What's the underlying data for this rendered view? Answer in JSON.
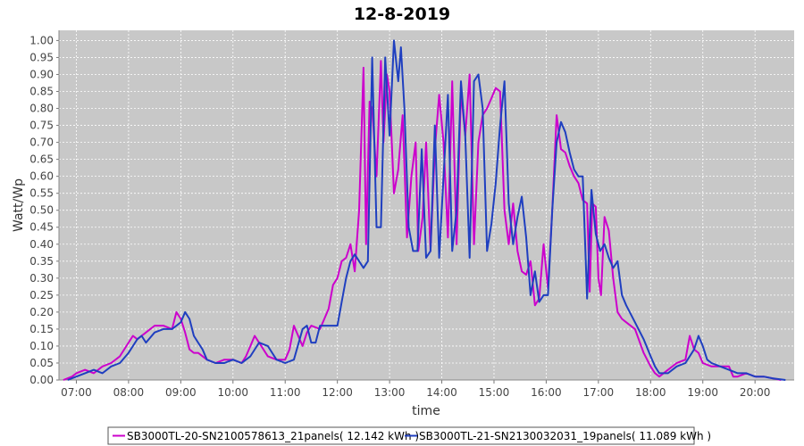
{
  "chart_data": {
    "type": "line",
    "title": "12-8-2019",
    "xlabel": "time",
    "ylabel": "Watt/Wp",
    "xlim": [
      "06:40",
      "20:45"
    ],
    "ylim": [
      0,
      1.03
    ],
    "grid": true,
    "legend_position": "bottom",
    "x_ticks": [
      "07:00",
      "08:00",
      "09:00",
      "10:00",
      "11:00",
      "12:00",
      "13:00",
      "14:00",
      "15:00",
      "16:00",
      "17:00",
      "18:00",
      "19:00",
      "20:00"
    ],
    "y_ticks": [
      "0.00",
      "0.05",
      "0.10",
      "0.15",
      "0.20",
      "0.25",
      "0.30",
      "0.35",
      "0.40",
      "0.45",
      "0.50",
      "0.55",
      "0.60",
      "0.65",
      "0.70",
      "0.75",
      "0.80",
      "0.85",
      "0.90",
      "0.95",
      "1.00"
    ],
    "colors": {
      "plot_background": "#c8c8c8",
      "gridline": "#ffffff",
      "series1": "#cc00cc",
      "series2": "#1f3fc0"
    },
    "series": [
      {
        "name": "SB3000TL-20-SN2100578613_21panels( 12.142 kWh )",
        "color": "#cc00cc",
        "points": [
          [
            "06:45",
            0.0
          ],
          [
            "06:55",
            0.01
          ],
          [
            "07:00",
            0.02
          ],
          [
            "07:10",
            0.03
          ],
          [
            "07:20",
            0.02
          ],
          [
            "07:30",
            0.04
          ],
          [
            "07:40",
            0.05
          ],
          [
            "07:50",
            0.07
          ],
          [
            "08:00",
            0.11
          ],
          [
            "08:05",
            0.13
          ],
          [
            "08:10",
            0.12
          ],
          [
            "08:20",
            0.14
          ],
          [
            "08:30",
            0.16
          ],
          [
            "08:40",
            0.16
          ],
          [
            "08:50",
            0.15
          ],
          [
            "08:55",
            0.2
          ],
          [
            "09:00",
            0.18
          ],
          [
            "09:05",
            0.14
          ],
          [
            "09:10",
            0.09
          ],
          [
            "09:15",
            0.08
          ],
          [
            "09:20",
            0.08
          ],
          [
            "09:30",
            0.06
          ],
          [
            "09:40",
            0.05
          ],
          [
            "09:50",
            0.06
          ],
          [
            "10:00",
            0.06
          ],
          [
            "10:10",
            0.05
          ],
          [
            "10:15",
            0.07
          ],
          [
            "10:20",
            0.1
          ],
          [
            "10:25",
            0.13
          ],
          [
            "10:30",
            0.11
          ],
          [
            "10:40",
            0.07
          ],
          [
            "10:50",
            0.06
          ],
          [
            "11:00",
            0.06
          ],
          [
            "11:05",
            0.09
          ],
          [
            "11:10",
            0.16
          ],
          [
            "11:15",
            0.13
          ],
          [
            "11:20",
            0.1
          ],
          [
            "11:25",
            0.14
          ],
          [
            "11:30",
            0.16
          ],
          [
            "11:40",
            0.15
          ],
          [
            "11:50",
            0.21
          ],
          [
            "11:55",
            0.28
          ],
          [
            "12:00",
            0.3
          ],
          [
            "12:05",
            0.35
          ],
          [
            "12:10",
            0.36
          ],
          [
            "12:15",
            0.4
          ],
          [
            "12:20",
            0.32
          ],
          [
            "12:25",
            0.5
          ],
          [
            "12:30",
            0.92
          ],
          [
            "12:33",
            0.4
          ],
          [
            "12:37",
            0.82
          ],
          [
            "12:40",
            0.8
          ],
          [
            "12:45",
            0.6
          ],
          [
            "12:50",
            0.94
          ],
          [
            "12:53",
            0.7
          ],
          [
            "12:57",
            0.9
          ],
          [
            "13:00",
            0.85
          ],
          [
            "13:05",
            0.55
          ],
          [
            "13:10",
            0.62
          ],
          [
            "13:15",
            0.78
          ],
          [
            "13:20",
            0.42
          ],
          [
            "13:25",
            0.6
          ],
          [
            "13:30",
            0.7
          ],
          [
            "13:33",
            0.38
          ],
          [
            "13:38",
            0.48
          ],
          [
            "13:42",
            0.7
          ],
          [
            "13:47",
            0.38
          ],
          [
            "13:52",
            0.68
          ],
          [
            "13:57",
            0.84
          ],
          [
            "14:02",
            0.7
          ],
          [
            "14:07",
            0.42
          ],
          [
            "14:12",
            0.88
          ],
          [
            "14:17",
            0.4
          ],
          [
            "14:22",
            0.85
          ],
          [
            "14:27",
            0.72
          ],
          [
            "14:32",
            0.9
          ],
          [
            "14:37",
            0.4
          ],
          [
            "14:42",
            0.7
          ],
          [
            "14:47",
            0.78
          ],
          [
            "14:52",
            0.8
          ],
          [
            "14:57",
            0.83
          ],
          [
            "15:02",
            0.86
          ],
          [
            "15:07",
            0.85
          ],
          [
            "15:12",
            0.5
          ],
          [
            "15:17",
            0.4
          ],
          [
            "15:22",
            0.52
          ],
          [
            "15:27",
            0.38
          ],
          [
            "15:32",
            0.32
          ],
          [
            "15:37",
            0.31
          ],
          [
            "15:42",
            0.35
          ],
          [
            "15:47",
            0.22
          ],
          [
            "15:52",
            0.24
          ],
          [
            "15:57",
            0.4
          ],
          [
            "16:02",
            0.27
          ],
          [
            "16:07",
            0.5
          ],
          [
            "16:12",
            0.78
          ],
          [
            "16:17",
            0.68
          ],
          [
            "16:22",
            0.67
          ],
          [
            "16:27",
            0.63
          ],
          [
            "16:32",
            0.6
          ],
          [
            "16:37",
            0.58
          ],
          [
            "16:42",
            0.53
          ],
          [
            "16:47",
            0.52
          ],
          [
            "16:50",
            0.26
          ],
          [
            "16:53",
            0.52
          ],
          [
            "16:57",
            0.51
          ],
          [
            "17:00",
            0.3
          ],
          [
            "17:03",
            0.25
          ],
          [
            "17:07",
            0.48
          ],
          [
            "17:12",
            0.44
          ],
          [
            "17:17",
            0.3
          ],
          [
            "17:22",
            0.2
          ],
          [
            "17:27",
            0.18
          ],
          [
            "17:32",
            0.17
          ],
          [
            "17:42",
            0.15
          ],
          [
            "17:52",
            0.08
          ],
          [
            "18:00",
            0.04
          ],
          [
            "18:05",
            0.02
          ],
          [
            "18:10",
            0.01
          ],
          [
            "18:20",
            0.03
          ],
          [
            "18:30",
            0.05
          ],
          [
            "18:40",
            0.06
          ],
          [
            "18:45",
            0.13
          ],
          [
            "18:50",
            0.09
          ],
          [
            "18:55",
            0.08
          ],
          [
            "19:00",
            0.05
          ],
          [
            "19:10",
            0.04
          ],
          [
            "19:20",
            0.04
          ],
          [
            "19:30",
            0.04
          ],
          [
            "19:35",
            0.01
          ],
          [
            "19:40",
            0.01
          ],
          [
            "19:50",
            0.02
          ],
          [
            "20:00",
            0.01
          ],
          [
            "20:10",
            0.01
          ],
          [
            "20:20",
            0.005
          ],
          [
            "20:30",
            0.0
          ]
        ]
      },
      {
        "name": "SB3000TL-21-SN2130032031_19panels( 11.089 kWh )",
        "color": "#1f3fc0",
        "points": [
          [
            "06:50",
            0.0
          ],
          [
            "07:00",
            0.01
          ],
          [
            "07:10",
            0.02
          ],
          [
            "07:20",
            0.03
          ],
          [
            "07:30",
            0.02
          ],
          [
            "07:40",
            0.04
          ],
          [
            "07:50",
            0.05
          ],
          [
            "08:00",
            0.08
          ],
          [
            "08:10",
            0.12
          ],
          [
            "08:15",
            0.13
          ],
          [
            "08:20",
            0.11
          ],
          [
            "08:30",
            0.14
          ],
          [
            "08:40",
            0.15
          ],
          [
            "08:50",
            0.15
          ],
          [
            "09:00",
            0.17
          ],
          [
            "09:05",
            0.2
          ],
          [
            "09:10",
            0.18
          ],
          [
            "09:15",
            0.13
          ],
          [
            "09:20",
            0.11
          ],
          [
            "09:25",
            0.09
          ],
          [
            "09:30",
            0.06
          ],
          [
            "09:40",
            0.05
          ],
          [
            "09:50",
            0.05
          ],
          [
            "10:00",
            0.06
          ],
          [
            "10:10",
            0.05
          ],
          [
            "10:20",
            0.07
          ],
          [
            "10:30",
            0.11
          ],
          [
            "10:40",
            0.1
          ],
          [
            "10:50",
            0.06
          ],
          [
            "11:00",
            0.05
          ],
          [
            "11:10",
            0.06
          ],
          [
            "11:20",
            0.15
          ],
          [
            "11:25",
            0.16
          ],
          [
            "11:30",
            0.11
          ],
          [
            "11:35",
            0.11
          ],
          [
            "11:40",
            0.16
          ],
          [
            "11:50",
            0.16
          ],
          [
            "12:00",
            0.16
          ],
          [
            "12:05",
            0.23
          ],
          [
            "12:10",
            0.3
          ],
          [
            "12:15",
            0.35
          ],
          [
            "12:20",
            0.37
          ],
          [
            "12:25",
            0.35
          ],
          [
            "12:30",
            0.33
          ],
          [
            "12:35",
            0.35
          ],
          [
            "12:40",
            0.95
          ],
          [
            "12:45",
            0.45
          ],
          [
            "12:50",
            0.45
          ],
          [
            "12:55",
            0.95
          ],
          [
            "13:00",
            0.72
          ],
          [
            "13:05",
            1.0
          ],
          [
            "13:10",
            0.88
          ],
          [
            "13:13",
            0.98
          ],
          [
            "13:17",
            0.8
          ],
          [
            "13:22",
            0.45
          ],
          [
            "13:27",
            0.38
          ],
          [
            "13:32",
            0.38
          ],
          [
            "13:37",
            0.68
          ],
          [
            "13:42",
            0.36
          ],
          [
            "13:47",
            0.38
          ],
          [
            "13:52",
            0.75
          ],
          [
            "13:57",
            0.36
          ],
          [
            "14:02",
            0.6
          ],
          [
            "14:07",
            0.84
          ],
          [
            "14:12",
            0.38
          ],
          [
            "14:17",
            0.5
          ],
          [
            "14:22",
            0.88
          ],
          [
            "14:27",
            0.72
          ],
          [
            "14:32",
            0.36
          ],
          [
            "14:37",
            0.88
          ],
          [
            "14:42",
            0.9
          ],
          [
            "14:47",
            0.8
          ],
          [
            "14:52",
            0.38
          ],
          [
            "14:57",
            0.46
          ],
          [
            "15:02",
            0.58
          ],
          [
            "15:07",
            0.75
          ],
          [
            "15:12",
            0.88
          ],
          [
            "15:17",
            0.52
          ],
          [
            "15:22",
            0.4
          ],
          [
            "15:27",
            0.48
          ],
          [
            "15:32",
            0.54
          ],
          [
            "15:37",
            0.42
          ],
          [
            "15:42",
            0.25
          ],
          [
            "15:47",
            0.32
          ],
          [
            "15:52",
            0.23
          ],
          [
            "15:57",
            0.25
          ],
          [
            "16:02",
            0.25
          ],
          [
            "16:07",
            0.5
          ],
          [
            "16:12",
            0.7
          ],
          [
            "16:17",
            0.76
          ],
          [
            "16:22",
            0.73
          ],
          [
            "16:27",
            0.67
          ],
          [
            "16:32",
            0.62
          ],
          [
            "16:37",
            0.6
          ],
          [
            "16:42",
            0.6
          ],
          [
            "16:47",
            0.24
          ],
          [
            "16:52",
            0.56
          ],
          [
            "16:57",
            0.43
          ],
          [
            "17:02",
            0.38
          ],
          [
            "17:07",
            0.4
          ],
          [
            "17:12",
            0.36
          ],
          [
            "17:17",
            0.33
          ],
          [
            "17:22",
            0.35
          ],
          [
            "17:27",
            0.25
          ],
          [
            "17:32",
            0.22
          ],
          [
            "17:42",
            0.17
          ],
          [
            "17:52",
            0.12
          ],
          [
            "18:00",
            0.07
          ],
          [
            "18:05",
            0.04
          ],
          [
            "18:10",
            0.02
          ],
          [
            "18:20",
            0.02
          ],
          [
            "18:30",
            0.04
          ],
          [
            "18:40",
            0.05
          ],
          [
            "18:50",
            0.09
          ],
          [
            "18:55",
            0.13
          ],
          [
            "19:00",
            0.1
          ],
          [
            "19:05",
            0.06
          ],
          [
            "19:10",
            0.05
          ],
          [
            "19:20",
            0.04
          ],
          [
            "19:30",
            0.03
          ],
          [
            "19:40",
            0.02
          ],
          [
            "19:50",
            0.02
          ],
          [
            "20:00",
            0.01
          ],
          [
            "20:10",
            0.01
          ],
          [
            "20:20",
            0.005
          ],
          [
            "20:35",
            0.0
          ]
        ]
      }
    ]
  }
}
